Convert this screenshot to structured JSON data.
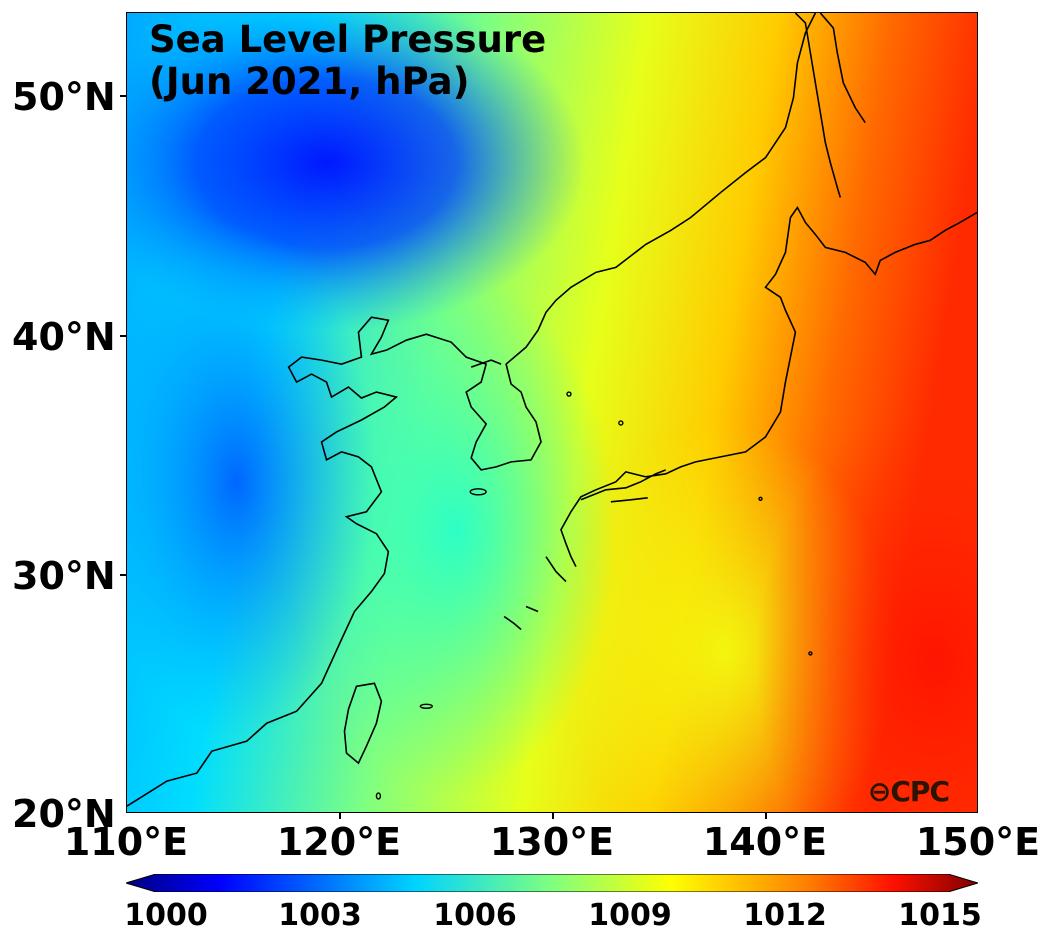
{
  "title": "Sea Level Pressure\n(Jun 2021, hPa)",
  "logo_text": "CPC",
  "axes": {
    "lat_ticks": [
      "50°N",
      "40°N",
      "30°N",
      "20°N"
    ],
    "lon_ticks": [
      "110°E",
      "120°E",
      "130°E",
      "140°E",
      "150°E"
    ]
  },
  "colorbar": {
    "min": 1000,
    "max": 1015,
    "labels": [
      "1000",
      "1003",
      "1006",
      "1009",
      "1012",
      "1015"
    ],
    "colors": [
      "#00007f",
      "#0000ff",
      "#007fff",
      "#00ffff",
      "#7fff7f",
      "#ffff00",
      "#ff7f00",
      "#ff0000",
      "#7f0000"
    ]
  },
  "map_extent": {
    "lon_min": 110,
    "lon_max": 150,
    "lat_min": 20,
    "lat_max": 53.5
  }
}
